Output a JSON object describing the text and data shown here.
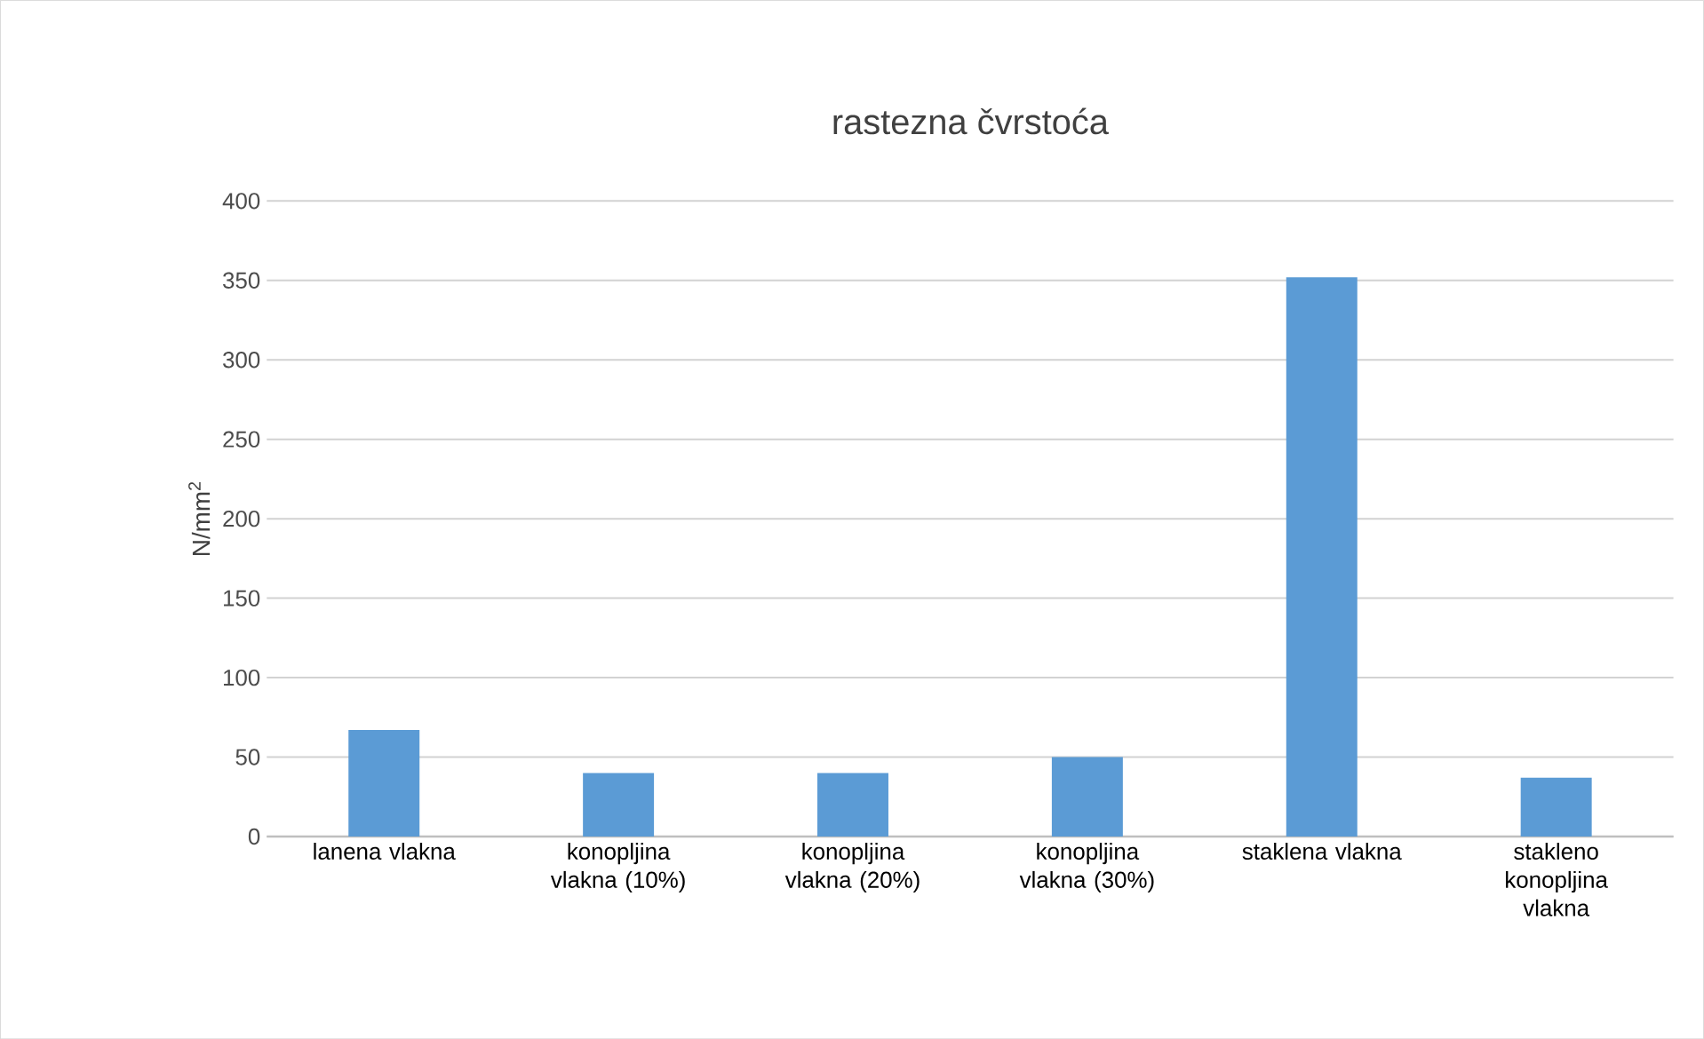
{
  "chart_data": {
    "type": "bar",
    "title": "rastezna čvrstoća",
    "ylabel": "N/mm$^{2}$",
    "categories": [
      "lanena vlakna",
      "konopljina vlakna (10%)",
      "konopljina vlakna (20%)",
      "konopljina vlakna (30%)",
      "staklena vlakna",
      "stakleno konopljina vlakna"
    ],
    "values": [
      67,
      40,
      40,
      50,
      352,
      37
    ],
    "color": "#5b9bd5",
    "ylim": [
      0,
      400
    ],
    "yticks": [
      0,
      50,
      100,
      150,
      200,
      250,
      300,
      350,
      400
    ],
    "grid": "y"
  }
}
